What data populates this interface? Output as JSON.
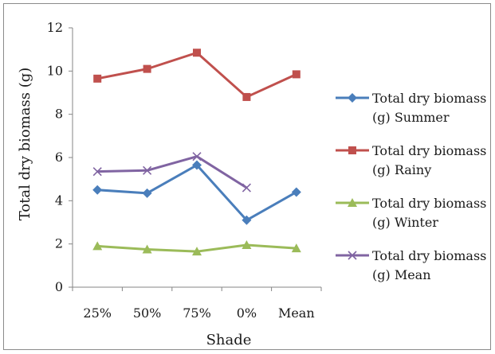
{
  "chart_data": {
    "type": "line",
    "xlabel": "Shade",
    "ylabel": "Total dry biomass (g)",
    "categories": [
      "25%",
      "50%",
      "75%",
      "0%",
      "Mean"
    ],
    "ylim": [
      0,
      12
    ],
    "yticks": [
      0,
      2,
      4,
      6,
      8,
      10,
      12
    ],
    "grid": false,
    "legend_position": "right",
    "series": [
      {
        "name": "Total dry biomass (g) Summer",
        "name_line1": "Total dry biomass",
        "name_line2": "(g) Summer",
        "values": [
          4.5,
          4.35,
          5.65,
          3.1,
          4.4
        ],
        "color": "#4a7ebb",
        "marker": "diamond"
      },
      {
        "name": "Total dry biomass (g) Rainy",
        "name_line1": "Total dry biomass",
        "name_line2": "(g) Rainy",
        "values": [
          9.65,
          10.1,
          10.85,
          8.8,
          9.85
        ],
        "color": "#c0504d",
        "marker": "square"
      },
      {
        "name": "Total dry biomass (g) Winter",
        "name_line1": "Total dry biomass",
        "name_line2": "(g) Winter",
        "values": [
          1.9,
          1.75,
          1.65,
          1.95,
          1.8
        ],
        "color": "#9bbb59",
        "marker": "triangle"
      },
      {
        "name": "Total dry biomass (g) Mean",
        "name_line1": "Total dry biomass",
        "name_line2": "(g) Mean",
        "values": [
          5.35,
          5.4,
          6.05,
          4.6,
          null
        ],
        "color": "#8064a2",
        "marker": "x"
      }
    ]
  }
}
